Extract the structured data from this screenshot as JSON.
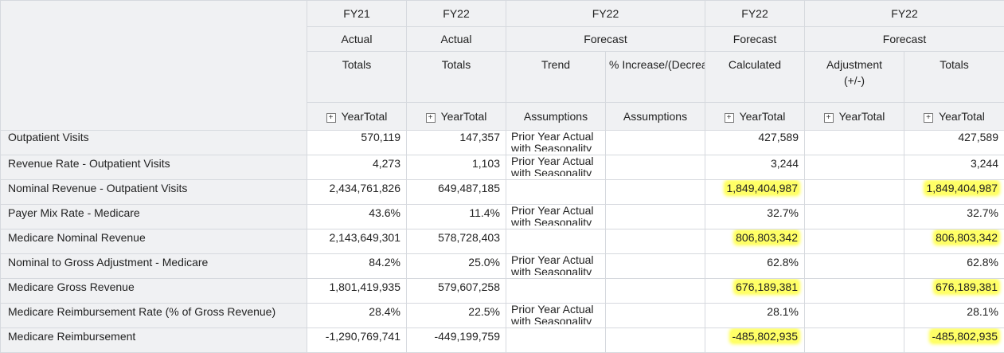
{
  "columns": [
    {
      "year": "FY21",
      "scenario": "Actual",
      "version": "Totals",
      "member": "YearTotal"
    },
    {
      "year": "FY22",
      "scenario": "Actual",
      "version": "Totals",
      "member": "YearTotal"
    },
    {
      "version": "Trend",
      "member": "Assumptions"
    },
    {
      "version": "% Increase/(Decrease)",
      "member": "Assumptions"
    },
    {
      "version": "Calculated",
      "member": "YearTotal"
    },
    {
      "version": "Adjustment (+/-)",
      "member": "YearTotal"
    },
    {
      "version": "Totals",
      "member": "YearTotal"
    }
  ],
  "forecast_group_1": {
    "year": "FY22",
    "scenario": "Forecast"
  },
  "forecast_group_2": {
    "year": "FY22",
    "scenario": "Forecast"
  },
  "forecast_group_3": {
    "year": "FY22",
    "scenario": "Forecast"
  },
  "expand_icon": "plus-square-icon",
  "highlight_color": "#ffff66",
  "rows": [
    {
      "label": "Outpatient Visits",
      "fy21": "570,119",
      "fy22": "147,357",
      "trend": "Prior Year Actual with Seasonality",
      "pct": "",
      "calc": "427,589",
      "adj": "",
      "total": "427,589"
    },
    {
      "label": "Revenue Rate - Outpatient Visits",
      "fy21": "4,273",
      "fy22": "1,103",
      "trend": "Prior Year Actual with Seasonality",
      "pct": "",
      "calc": "3,244",
      "adj": "",
      "total": "3,244"
    },
    {
      "label": "Nominal Revenue - Outpatient Visits",
      "fy21": "2,434,761,826",
      "fy22": "649,487,185",
      "trend": "",
      "pct": "",
      "calc": "1,849,404,987",
      "adj": "",
      "total": "1,849,404,987"
    },
    {
      "label": "Payer Mix Rate - Medicare",
      "fy21": "43.6%",
      "fy22": "11.4%",
      "trend": "Prior Year Actual with Seasonality",
      "pct": "",
      "calc": "32.7%",
      "adj": "",
      "total": "32.7%"
    },
    {
      "label": "Medicare Nominal Revenue",
      "fy21": "2,143,649,301",
      "fy22": "578,728,403",
      "trend": "",
      "pct": "",
      "calc": "806,803,342",
      "adj": "",
      "total": "806,803,342"
    },
    {
      "label": "Nominal to Gross Adjustment - Medicare",
      "fy21": "84.2%",
      "fy22": "25.0%",
      "trend": "Prior Year Actual with Seasonality",
      "pct": "",
      "calc": "62.8%",
      "adj": "",
      "total": "62.8%"
    },
    {
      "label": "Medicare Gross Revenue",
      "fy21": "1,801,419,935",
      "fy22": "579,607,258",
      "trend": "",
      "pct": "",
      "calc": "676,189,381",
      "adj": "",
      "total": "676,189,381"
    },
    {
      "label": "Medicare Reimbursement Rate (% of Gross Revenue)",
      "fy21": "28.4%",
      "fy22": "22.5%",
      "trend": "Prior Year Actual with Seasonality",
      "pct": "",
      "calc": "28.1%",
      "adj": "",
      "total": "28.1%"
    },
    {
      "label": "Medicare Reimbursement",
      "fy21": "-1,290,769,741",
      "fy22": "-449,199,759",
      "trend": "",
      "pct": "",
      "calc": "-485,802,935",
      "adj": "",
      "total": "-485,802,935"
    }
  ]
}
